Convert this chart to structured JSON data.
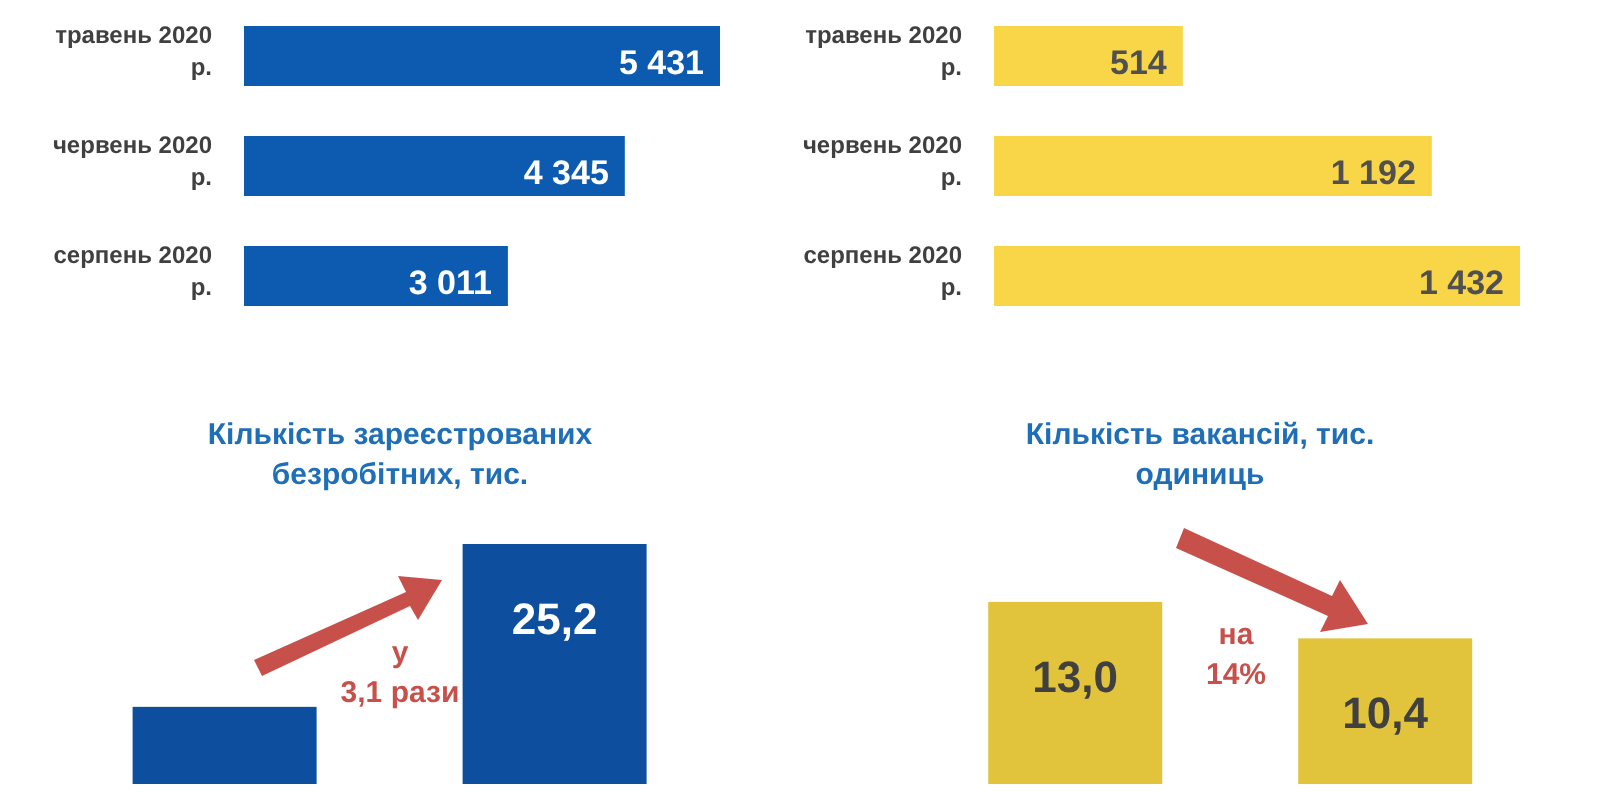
{
  "chart_data": [
    {
      "type": "bar",
      "orientation": "horizontal",
      "categories": [
        "травень 2020 р.",
        "червень 2020 р.",
        "серпень 2020 р."
      ],
      "values": [
        5431,
        4345,
        3011
      ],
      "value_labels": [
        "5 431",
        "4 345",
        "3 011"
      ],
      "color": "#0d5bb0"
    },
    {
      "type": "bar",
      "orientation": "horizontal",
      "categories": [
        "травень 2020 р.",
        "червень 2020 р.",
        "серпень 2020 р."
      ],
      "values": [
        514,
        1192,
        1432
      ],
      "value_labels": [
        "514",
        "1 192",
        "1 432"
      ],
      "color": "#f8d648"
    },
    {
      "type": "bar",
      "title": "Кількість зареєстрованих безробітних, тис.",
      "categories": [
        null,
        null
      ],
      "values": [
        8.1,
        25.2
      ],
      "value_labels": [
        null,
        "25,2"
      ],
      "color": "#0d4f9e",
      "annotations": [
        "у 3,1 рази"
      ]
    },
    {
      "type": "bar",
      "title": "Кількість вакансій, тис. одиниць",
      "categories": [
        null,
        null
      ],
      "values": [
        13.0,
        10.4
      ],
      "value_labels": [
        "13,0",
        "10,4"
      ],
      "color": "#e2c43c",
      "annotations": [
        "на 14%"
      ]
    }
  ]
}
